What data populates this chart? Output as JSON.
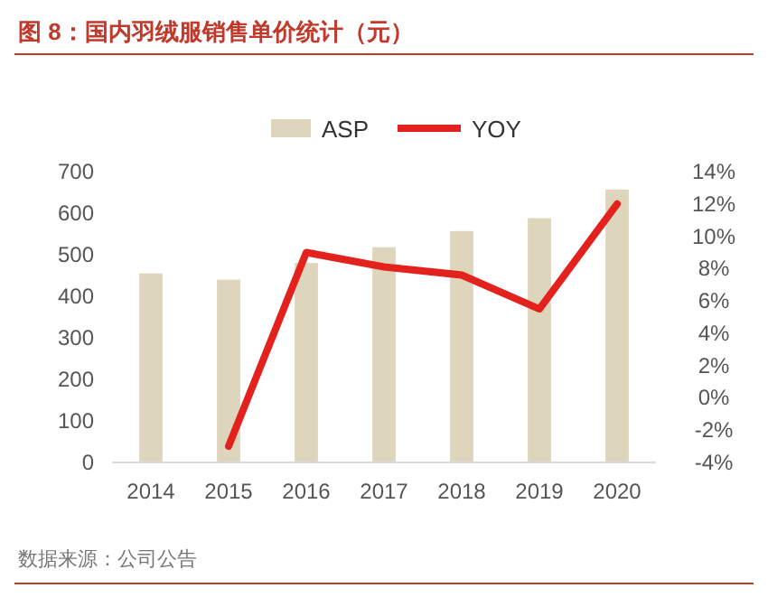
{
  "chart_data": {
    "type": "bar",
    "title": "图 8：国内羽绒服销售单价统计（元）",
    "categories": [
      "2014",
      "2015",
      "2016",
      "2017",
      "2018",
      "2019",
      "2020"
    ],
    "series": [
      {
        "name": "ASP",
        "color": "#ded5bd",
        "values": [
          455,
          440,
          480,
          518,
          557,
          588,
          657
        ]
      },
      {
        "name": "YOY",
        "type": "line",
        "axis": "y2",
        "color": "#e3211d",
        "values": [
          null,
          -3.0,
          9.0,
          8.1,
          7.6,
          5.5,
          12.0
        ]
      }
    ],
    "ylim": [
      0,
      700
    ],
    "yticks": [
      0,
      100,
      200,
      300,
      400,
      500,
      600,
      700
    ],
    "y2lim": [
      -4,
      14
    ],
    "y2ticks": [
      {
        "value": -4,
        "label": "-4%"
      },
      {
        "value": -2,
        "label": "-2%"
      },
      {
        "value": 0,
        "label": "0%"
      },
      {
        "value": 2,
        "label": "2%"
      },
      {
        "value": 4,
        "label": "4%"
      },
      {
        "value": 6,
        "label": "6%"
      },
      {
        "value": 8,
        "label": "8%"
      },
      {
        "value": 10,
        "label": "10%"
      },
      {
        "value": 12,
        "label": "12%"
      },
      {
        "value": 14,
        "label": "14%"
      }
    ],
    "legend": "top",
    "grid": false,
    "marker": "none",
    "line_style": "solid",
    "annotations": [
      "数据来源：公司公告"
    ]
  }
}
